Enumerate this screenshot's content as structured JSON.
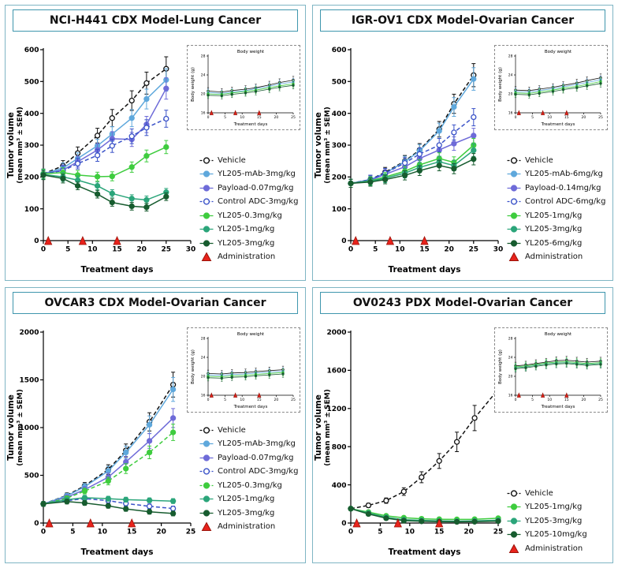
{
  "figure": {
    "bg": "#ffffff",
    "panel_border": "#7fb5c4",
    "title_border": "#3f96ad",
    "axis_color": "#000000",
    "admin_color": "#e8231c",
    "admin_edge": "#9b1208",
    "admin_label": "Administration"
  },
  "chart_data": [
    {
      "title": "NCI-H441 CDX Model-Lung Cancer",
      "main": {
        "type": "line",
        "xlabel": "Treatment days",
        "ylabel": "Tumor volume",
        "ylabel2": "(mean mm³ ± SEM)",
        "xlim": [
          0,
          30
        ],
        "ylim": [
          0,
          600
        ],
        "xticks": [
          0,
          5,
          10,
          15,
          20,
          25,
          30
        ],
        "yticks": [
          0,
          100,
          200,
          300,
          400,
          500,
          600
        ],
        "x": [
          0,
          4,
          7,
          11,
          14,
          18,
          21,
          25
        ],
        "admin_days": [
          1,
          8,
          15
        ],
        "err_frac": 0.07,
        "err_min": 12,
        "series": [
          {
            "name": "Vehicle",
            "color": "#111111",
            "marker": "open",
            "dash": true,
            "values": [
              210,
              235,
              275,
              330,
              385,
              440,
              495,
              540
            ]
          },
          {
            "name": "YL205-mAb-3mg/kg",
            "color": "#5fa8dc",
            "marker": "filled",
            "values": [
              210,
              228,
              258,
              298,
              335,
              385,
              445,
              505
            ]
          },
          {
            "name": "Payload-0.07mg/kg",
            "color": "#6e6bd8",
            "marker": "filled",
            "values": [
              210,
              222,
              248,
              285,
              320,
              318,
              365,
              478
            ]
          },
          {
            "name": "Control ADC-3mg/kg",
            "color": "#3a52c8",
            "marker": "open",
            "dash": true,
            "values": [
              210,
              220,
              242,
              268,
              298,
              328,
              355,
              383
            ]
          },
          {
            "name": "YL205-0.3mg/kg",
            "color": "#3ecc3e",
            "marker": "filled",
            "values": [
              210,
              214,
              206,
              201,
              202,
              231,
              266,
              294
            ]
          },
          {
            "name": "YL205-1mg/kg",
            "color": "#2ba57a",
            "marker": "filled",
            "values": [
              208,
              200,
              190,
              172,
              148,
              132,
              128,
              152
            ]
          },
          {
            "name": "YL205-3mg/kg",
            "color": "#175c2f",
            "marker": "filled",
            "values": [
              206,
              195,
              172,
              146,
              120,
              108,
              105,
              138
            ]
          }
        ]
      },
      "inset": {
        "type": "line",
        "title": "Body weight",
        "xlabel": "Treatment days",
        "ylabel": "Body weight (g)",
        "xlim": [
          0,
          25
        ],
        "ylim": [
          16,
          28
        ],
        "xticks": [
          0,
          5,
          10,
          15,
          20,
          25
        ],
        "yticks": [
          16,
          20,
          24,
          28
        ],
        "x": [
          0,
          4,
          7,
          11,
          14,
          18,
          21,
          25
        ],
        "admin_days": [
          1,
          8,
          15
        ],
        "err_frac": 0.035,
        "err_min": 0.6,
        "series": [
          {
            "color": "#111111",
            "marker": "open",
            "values": [
              20.6,
              20.4,
              20.7,
              21.0,
              21.3,
              21.9,
              22.4,
              22.9
            ]
          },
          {
            "color": "#5fa8dc",
            "marker": "filled",
            "values": [
              20.3,
              20.1,
              20.4,
              20.7,
              21.1,
              21.6,
              22.1,
              22.5
            ]
          },
          {
            "color": "#3ecc3e",
            "marker": "filled",
            "values": [
              20.0,
              19.9,
              20.2,
              20.5,
              20.8,
              21.3,
              21.7,
              22.1
            ]
          },
          {
            "color": "#175c2f",
            "marker": "filled",
            "values": [
              19.7,
              19.6,
              19.9,
              20.2,
              20.5,
              21.0,
              21.4,
              21.8
            ]
          }
        ]
      }
    },
    {
      "title": "IGR-OV1 CDX Model-Ovarian Cancer",
      "main": {
        "type": "line",
        "xlabel": "Treatment days",
        "ylabel": "Tumor volume",
        "ylabel2": "(mean mm³ ± SEM)",
        "xlim": [
          0,
          30
        ],
        "ylim": [
          0,
          600
        ],
        "xticks": [
          0,
          5,
          10,
          15,
          20,
          25,
          30
        ],
        "yticks": [
          0,
          100,
          200,
          300,
          400,
          500,
          600
        ],
        "x": [
          0,
          4,
          7,
          11,
          14,
          18,
          21,
          25
        ],
        "admin_days": [
          1,
          8,
          15
        ],
        "err_frac": 0.07,
        "err_min": 12,
        "series": [
          {
            "name": "Vehicle",
            "color": "#111111",
            "marker": "open",
            "dash": true,
            "values": [
              180,
              192,
              215,
              250,
              285,
              350,
              430,
              520
            ]
          },
          {
            "name": "YL205-mAb-6mg/kg",
            "color": "#5fa8dc",
            "marker": "filled",
            "values": [
              180,
              192,
              212,
              248,
              282,
              345,
              420,
              508
            ]
          },
          {
            "name": "Payload-0.14mg/kg",
            "color": "#6e6bd8",
            "marker": "filled",
            "values": [
              180,
              190,
              208,
              232,
              258,
              285,
              305,
              330
            ]
          },
          {
            "name": "Control ADC-6mg/kg",
            "color": "#3a52c8",
            "marker": "open",
            "dash": true,
            "values": [
              180,
              192,
              212,
              244,
              272,
              300,
              340,
              388
            ]
          },
          {
            "name": "YL205-1mg/kg",
            "color": "#3ecc3e",
            "marker": "filled",
            "values": [
              180,
              188,
              200,
              218,
              238,
              258,
              246,
              300
            ]
          },
          {
            "name": "YL205-3mg/kg",
            "color": "#2ba57a",
            "marker": "filled",
            "values": [
              180,
              186,
              196,
              212,
              230,
              248,
              236,
              284
            ]
          },
          {
            "name": "YL205-6mg/kg",
            "color": "#175c2f",
            "marker": "filled",
            "values": [
              180,
              184,
              192,
              205,
              220,
              236,
              226,
              256
            ]
          }
        ]
      },
      "inset": {
        "type": "line",
        "title": "Body weight",
        "xlabel": "Treatment days",
        "ylabel": "Body weight (g)",
        "xlim": [
          0,
          25
        ],
        "ylim": [
          16,
          28
        ],
        "xticks": [
          0,
          5,
          10,
          15,
          20,
          25
        ],
        "yticks": [
          16,
          20,
          24,
          28
        ],
        "x": [
          0,
          4,
          7,
          11,
          14,
          18,
          21,
          25
        ],
        "admin_days": [
          1,
          8,
          15
        ],
        "err_frac": 0.035,
        "err_min": 0.6,
        "series": [
          {
            "color": "#111111",
            "marker": "open",
            "values": [
              20.8,
              20.7,
              21.0,
              21.4,
              21.8,
              22.3,
              22.8,
              23.4
            ]
          },
          {
            "color": "#5fa8dc",
            "marker": "filled",
            "values": [
              20.5,
              20.4,
              20.7,
              21.1,
              21.5,
              22.0,
              22.4,
              23.0
            ]
          },
          {
            "color": "#3ecc3e",
            "marker": "filled",
            "values": [
              20.2,
              20.1,
              20.4,
              20.8,
              21.2,
              21.6,
              22.0,
              22.6
            ]
          },
          {
            "color": "#175c2f",
            "marker": "filled",
            "values": [
              19.9,
              19.8,
              20.1,
              20.5,
              20.9,
              21.3,
              21.7,
              22.2
            ]
          }
        ]
      }
    },
    {
      "title": "OVCAR3 CDX Model-Ovarian Cancer",
      "main": {
        "type": "line",
        "xlabel": "Treatment days",
        "ylabel": "Tumor volume",
        "ylabel2": "(mean mm³ ± SEM)",
        "xlim": [
          0,
          25
        ],
        "ylim": [
          0,
          2000
        ],
        "xticks": [
          0,
          5,
          10,
          15,
          20,
          25
        ],
        "yticks": [
          0,
          500,
          1000,
          1500,
          2000
        ],
        "x": [
          0,
          4,
          7,
          11,
          14,
          18,
          22
        ],
        "admin_days": [
          1,
          8,
          15
        ],
        "err_frac": 0.09,
        "err_min": 25,
        "series": [
          {
            "name": "Vehicle",
            "color": "#111111",
            "marker": "open",
            "dash": true,
            "values": [
              200,
              290,
              390,
              560,
              760,
              1060,
              1450
            ]
          },
          {
            "name": "YL205-mAb-3mg/kg",
            "color": "#5fa8dc",
            "marker": "filled",
            "values": [
              200,
              285,
              380,
              545,
              740,
              1030,
              1400
            ]
          },
          {
            "name": "Payload-0.07mg/kg",
            "color": "#6e6bd8",
            "marker": "filled",
            "values": [
              200,
              270,
              350,
              480,
              640,
              860,
              1100
            ]
          },
          {
            "name": "Control ADC-3mg/kg",
            "color": "#3a52c8",
            "marker": "open",
            "dash": true,
            "values": [
              200,
              235,
              255,
              235,
              205,
              175,
              152
            ]
          },
          {
            "name": "YL205-0.3mg/kg",
            "color": "#3ecc3e",
            "marker": "filled",
            "dash": true,
            "values": [
              200,
              260,
              335,
              440,
              570,
              740,
              950
            ]
          },
          {
            "name": "YL205-1mg/kg",
            "color": "#2ba57a",
            "marker": "filled",
            "values": [
              200,
              245,
              265,
              255,
              245,
              238,
              230
            ]
          },
          {
            "name": "YL205-3mg/kg",
            "color": "#175c2f",
            "marker": "filled",
            "values": [
              200,
              225,
              210,
              180,
              148,
              118,
              100
            ]
          }
        ]
      },
      "inset": {
        "type": "line",
        "title": "Body weight",
        "xlabel": "Treatment days",
        "ylabel": "Body weight (g)",
        "xlim": [
          0,
          25
        ],
        "ylim": [
          16,
          28
        ],
        "xticks": [
          0,
          5,
          10,
          15,
          20,
          25
        ],
        "yticks": [
          16,
          20,
          24,
          28
        ],
        "x": [
          0,
          4,
          7,
          11,
          14,
          18,
          22
        ],
        "admin_days": [
          1,
          8,
          15
        ],
        "err_frac": 0.035,
        "err_min": 0.6,
        "series": [
          {
            "color": "#111111",
            "marker": "open",
            "values": [
              20.6,
              20.5,
              20.7,
              20.8,
              21.0,
              21.2,
              21.4
            ]
          },
          {
            "color": "#5fa8dc",
            "marker": "filled",
            "values": [
              20.3,
              20.2,
              20.4,
              20.5,
              20.7,
              20.9,
              21.1
            ]
          },
          {
            "color": "#3ecc3e",
            "marker": "filled",
            "values": [
              20.0,
              19.9,
              20.1,
              20.2,
              20.4,
              20.6,
              20.8
            ]
          },
          {
            "color": "#175c2f",
            "marker": "filled",
            "values": [
              19.7,
              19.6,
              19.8,
              19.9,
              20.1,
              20.3,
              20.5
            ]
          }
        ]
      }
    },
    {
      "title": "OV0243 PDX Model-Ovarian Cancer",
      "main": {
        "type": "line",
        "xlabel": "Treatment days",
        "ylabel": "Tumor volume",
        "ylabel2": "(mean mm³ ± SEM)",
        "xlim": [
          0,
          25
        ],
        "ylim": [
          0,
          2000
        ],
        "xticks": [
          0,
          5,
          10,
          15,
          20,
          25
        ],
        "yticks": [
          0,
          400,
          800,
          1200,
          1600,
          2000
        ],
        "x": [
          0,
          3,
          6,
          9,
          12,
          15,
          18,
          21,
          25
        ],
        "admin_days": [
          1,
          8,
          15
        ],
        "err_frac": 0.12,
        "err_min": 15,
        "series": [
          {
            "name": "Vehicle",
            "color": "#111111",
            "marker": "open",
            "dash": true,
            "values": [
              150,
              185,
              235,
              330,
              480,
              650,
              850,
              1100,
              1400
            ]
          },
          {
            "name": "YL205-1mg/kg",
            "color": "#3ecc3e",
            "marker": "filled",
            "values": [
              150,
              115,
              75,
              55,
              45,
              40,
              38,
              40,
              50
            ]
          },
          {
            "name": "YL205-3mg/kg",
            "color": "#2ba57a",
            "marker": "filled",
            "values": [
              150,
              105,
              60,
              35,
              28,
              22,
              20,
              22,
              30
            ]
          },
          {
            "name": "YL205-10mg/kg",
            "color": "#175c2f",
            "marker": "filled",
            "values": [
              150,
              95,
              50,
              25,
              18,
              14,
              12,
              14,
              20
            ]
          }
        ]
      },
      "inset": {
        "type": "line",
        "title": "Body weight",
        "xlabel": "Treatment days",
        "ylabel": "Body weight (g)",
        "xlim": [
          0,
          25
        ],
        "ylim": [
          16,
          28
        ],
        "xticks": [
          0,
          5,
          10,
          15,
          20,
          25
        ],
        "yticks": [
          16,
          20,
          24,
          28
        ],
        "x": [
          0,
          3,
          6,
          9,
          12,
          15,
          18,
          21,
          25
        ],
        "admin_days": [
          1,
          8,
          15
        ],
        "err_frac": 0.035,
        "err_min": 0.6,
        "series": [
          {
            "color": "#111111",
            "marker": "open",
            "values": [
              22.2,
              22.4,
              22.7,
              23.0,
              23.3,
              23.4,
              23.2,
              23.0,
              23.2
            ]
          },
          {
            "color": "#3ecc3e",
            "marker": "filled",
            "values": [
              22.0,
              22.2,
              22.5,
              22.8,
              23.0,
              23.1,
              22.9,
              22.7,
              22.9
            ]
          },
          {
            "color": "#2ba57a",
            "marker": "filled",
            "values": [
              21.8,
              22.0,
              22.3,
              22.6,
              22.8,
              22.9,
              22.7,
              22.5,
              22.7
            ]
          },
          {
            "color": "#175c2f",
            "marker": "filled",
            "values": [
              21.6,
              21.8,
              22.1,
              22.4,
              22.6,
              22.7,
              22.5,
              22.3,
              22.5
            ]
          }
        ]
      }
    }
  ]
}
